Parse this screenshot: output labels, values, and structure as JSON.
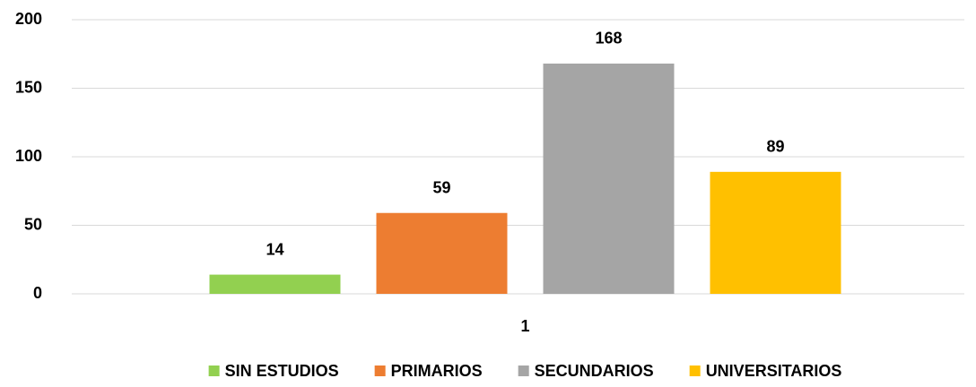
{
  "chart_data": {
    "type": "bar",
    "categories": [
      "1"
    ],
    "series": [
      {
        "name": "SIN ESTUDIOS",
        "color": "#92d050",
        "values": [
          14
        ]
      },
      {
        "name": "PRIMARIOS",
        "color": "#ed7d31",
        "values": [
          59
        ]
      },
      {
        "name": "SECUNDARIOS",
        "color": "#a5a5a5",
        "values": [
          168
        ]
      },
      {
        "name": "UNIVERSITARIOS",
        "color": "#ffc000",
        "values": [
          89
        ]
      }
    ],
    "ylim": [
      0,
      200
    ],
    "yticks": [
      0,
      50,
      100,
      150,
      200
    ],
    "grid": true,
    "legend": "bottom"
  }
}
